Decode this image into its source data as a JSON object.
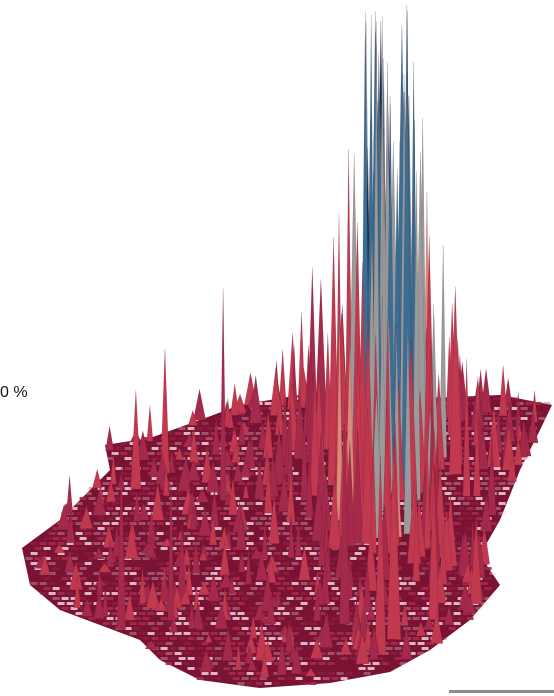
{
  "map": {
    "type": "3d-spike-map",
    "legend_label": "0 %",
    "colors": {
      "base_low": "#7a1233",
      "base_mid": "#a32a4a",
      "spike_red": "#c0394f",
      "spike_salmon": "#d98a78",
      "spike_grey": "#9a9a9a",
      "spike_blue": "#3a6f95",
      "spike_dark": "#0f2640",
      "scale_bar": "#8c8c8c"
    },
    "has_scale_bar": true
  }
}
